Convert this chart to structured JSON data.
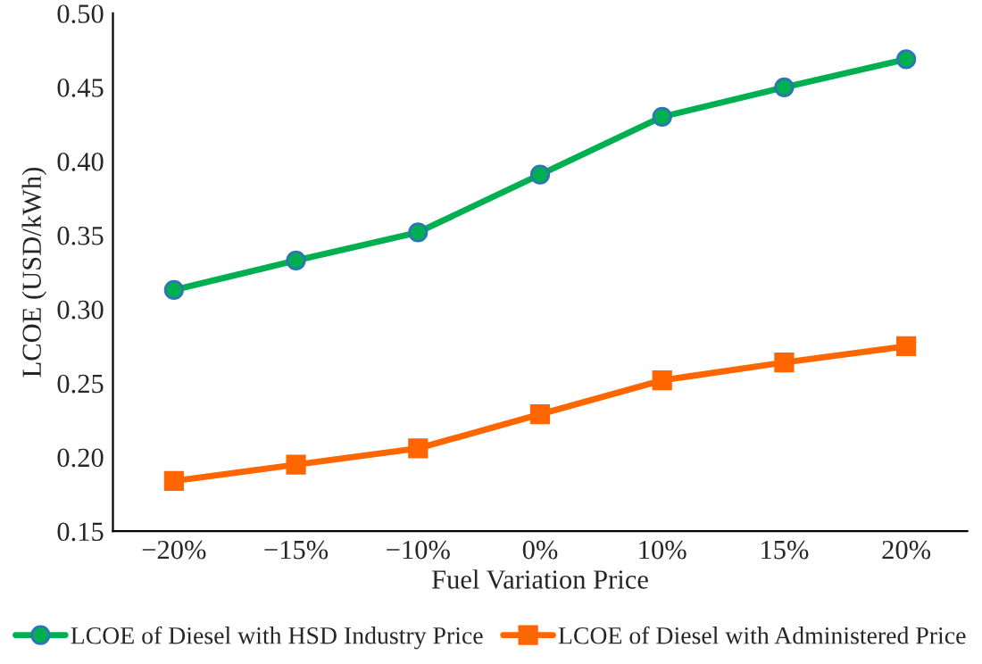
{
  "chart_data": {
    "type": "line",
    "xlabel": "Fuel Variation Price",
    "ylabel": "LCOE (USD/kWh)",
    "categories": [
      "−20%",
      "−15%",
      "−10%",
      "0%",
      "10%",
      "15%",
      "20%"
    ],
    "series": [
      {
        "name": "LCOE of Diesel with HSD Industry Price",
        "color": "#00b050",
        "marker": "circle",
        "values": [
          0.313,
          0.333,
          0.352,
          0.391,
          0.43,
          0.45,
          0.469
        ]
      },
      {
        "name": "LCOE of Diesel with Administered Price",
        "color": "#ff6600",
        "marker": "square",
        "values": [
          0.184,
          0.195,
          0.206,
          0.229,
          0.252,
          0.264,
          0.275
        ]
      }
    ],
    "ylim": [
      0.15,
      0.5
    ],
    "yticks": [
      {
        "value": 0.15,
        "label": "0.15"
      },
      {
        "value": 0.2,
        "label": "0.20"
      },
      {
        "value": 0.25,
        "label": "0.25"
      },
      {
        "value": 0.3,
        "label": "0.30"
      },
      {
        "value": 0.35,
        "label": "0.35"
      },
      {
        "value": 0.4,
        "label": "0.40"
      },
      {
        "value": 0.45,
        "label": "0.45"
      },
      {
        "value": 0.5,
        "label": "0.50"
      }
    ],
    "grid": false,
    "legend": "bottom"
  }
}
